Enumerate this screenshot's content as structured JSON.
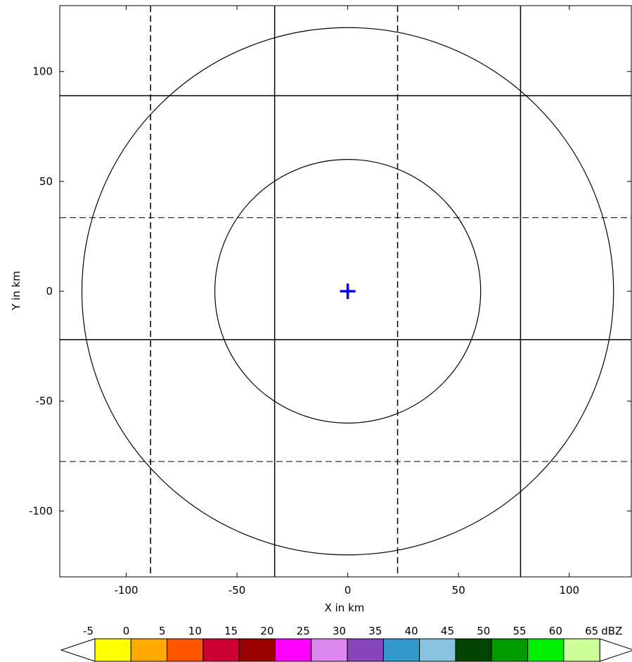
{
  "chart_data": {
    "type": "radar-range-plot",
    "xlabel": "X in km",
    "ylabel": "Y in km",
    "xlim": [
      -130,
      128
    ],
    "ylim": [
      -130,
      130
    ],
    "x_ticks": [
      -100,
      -50,
      0,
      50,
      100
    ],
    "x_tick_labels": [
      "-100",
      "-50",
      "0",
      "50",
      "100"
    ],
    "y_ticks": [
      100,
      50,
      0,
      -50,
      -100
    ],
    "y_tick_labels": [
      "100",
      "50",
      "0",
      "-50",
      "-100"
    ],
    "range_rings_km": [
      60,
      120
    ],
    "radar_site": {
      "x": 0,
      "y": 0,
      "marker": "plus",
      "color": "#0000ff"
    },
    "grid_lines": {
      "vertical_solid_x": [
        -33,
        78
      ],
      "vertical_dashed_x": [
        -89,
        22.5
      ],
      "horizontal_solid_y": [
        89,
        -22
      ],
      "horizontal_dashed_y": [
        33.5,
        -77.5
      ]
    },
    "colorbar": {
      "unit": "dBZ",
      "tick_labels": [
        "-5",
        "0",
        "5",
        "10",
        "15",
        "20",
        "25",
        "30",
        "35",
        "40",
        "45",
        "50",
        "55",
        "60",
        "65"
      ],
      "colors": [
        "#ffff00",
        "#ffaa00",
        "#ff5500",
        "#cc0033",
        "#990000",
        "#ff00ff",
        "#dd88ee",
        "#8844bb",
        "#3399cc",
        "#88c4e0",
        "#004400",
        "#009900",
        "#00ee00",
        "#ccff99"
      ]
    }
  }
}
